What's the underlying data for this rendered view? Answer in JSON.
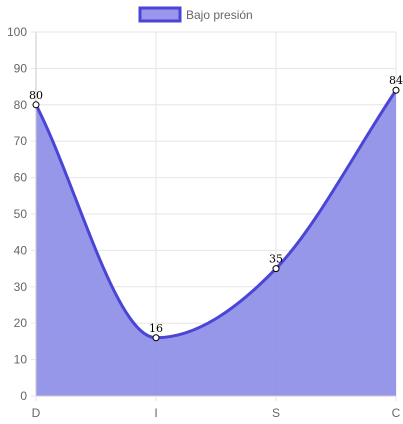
{
  "chart_data": {
    "type": "area",
    "categories": [
      "D",
      "I",
      "S",
      "C"
    ],
    "series": [
      {
        "name": "Bajo presión",
        "values": [
          80,
          16,
          35,
          84
        ]
      }
    ],
    "ylim": [
      0,
      100
    ],
    "yticks": [
      "0",
      "10",
      "20",
      "30",
      "40",
      "50",
      "60",
      "70",
      "80",
      "90",
      "100"
    ],
    "grid": true,
    "legend_position": "top",
    "data_labels": [
      "80",
      "16",
      "35",
      "84"
    ],
    "colors": {
      "fill": "#8c8ce8",
      "stroke": "#4b45d6",
      "grid": "#e6e6e6",
      "axis": "#c9c9c9",
      "point_fill": "#ffffff",
      "point_stroke": "#000000"
    }
  }
}
